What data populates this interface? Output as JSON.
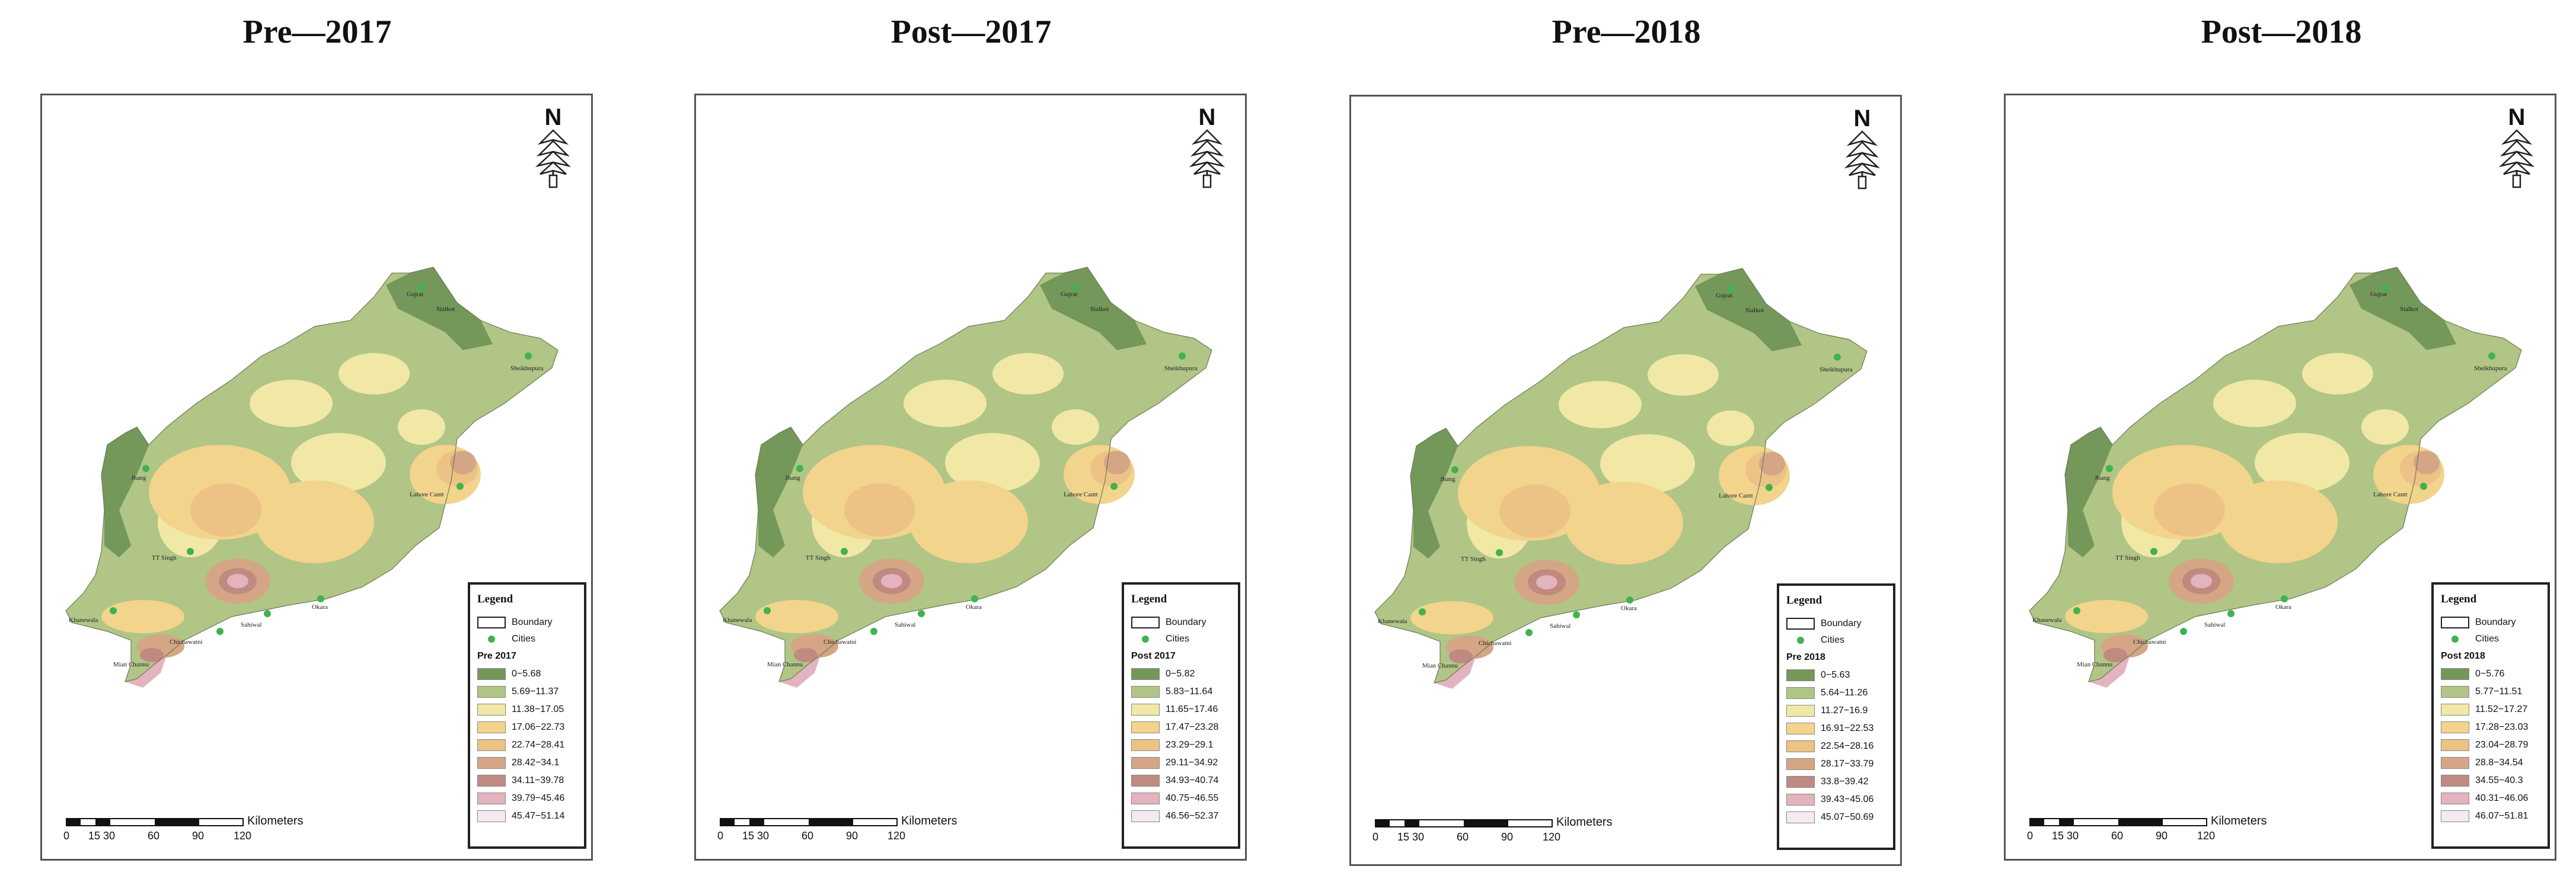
{
  "colors": {
    "c1": "#74975a",
    "c2": "#b0c586",
    "c3": "#f1e8a6",
    "c4": "#f2d48c",
    "c5": "#ecc385",
    "c6": "#d4a685",
    "c7": "#c08a80",
    "c8": "#e3b3bf",
    "c9": "#f6e9f1",
    "city": "#3fb34f",
    "boundary": "#222222"
  },
  "common": {
    "north": "N",
    "legend_heading": "Legend",
    "boundary_label": "Boundary",
    "cities_label": "Cities",
    "scale_unit": "Kilometers",
    "scale_ticks": [
      "0",
      "15",
      "30",
      "60",
      "90",
      "120"
    ],
    "cities": [
      "Gujrat",
      "Sialkot",
      "Sheikhupura",
      "Jhang",
      "Lahore Cantt",
      "TT Singh",
      "Okara",
      "Sahiwal",
      "Chichawatni",
      "Khanewala",
      "Mian Channu"
    ]
  },
  "maps": [
    {
      "title": "Pre—2017",
      "legend_title": "Pre 2017",
      "classes": [
        "0−5.68",
        "5.69−11.37",
        "11.38−17.05",
        "17.06−22.73",
        "22.74−28.41",
        "28.42−34.1",
        "34.11−39.78",
        "39.79−45.46",
        "45.47−51.14"
      ]
    },
    {
      "title": "Post—2017",
      "legend_title": "Post 2017",
      "classes": [
        "0−5.82",
        "5.83−11.64",
        "11.65−17.46",
        "17.47−23.28",
        "23.29−29.1",
        "29.11−34.92",
        "34.93−40.74",
        "40.75−46.55",
        "46.56−52.37"
      ]
    },
    {
      "title": "Pre—2018",
      "legend_title": "Pre 2018",
      "classes": [
        "0−5.63",
        "5.64−11.26",
        "11.27−16.9",
        "16.91−22.53",
        "22.54−28.16",
        "28.17−33.79",
        "33.8−39.42",
        "39.43−45.06",
        "45.07−50.69"
      ]
    },
    {
      "title": "Post—2018",
      "legend_title": "Post 2018",
      "classes": [
        "0−5.76",
        "5.77−11.51",
        "11.52−17.27",
        "17.28−23.03",
        "23.04−28.79",
        "28.8−34.54",
        "34.55−40.3",
        "40.31−46.06",
        "46.07−51.81"
      ]
    }
  ]
}
